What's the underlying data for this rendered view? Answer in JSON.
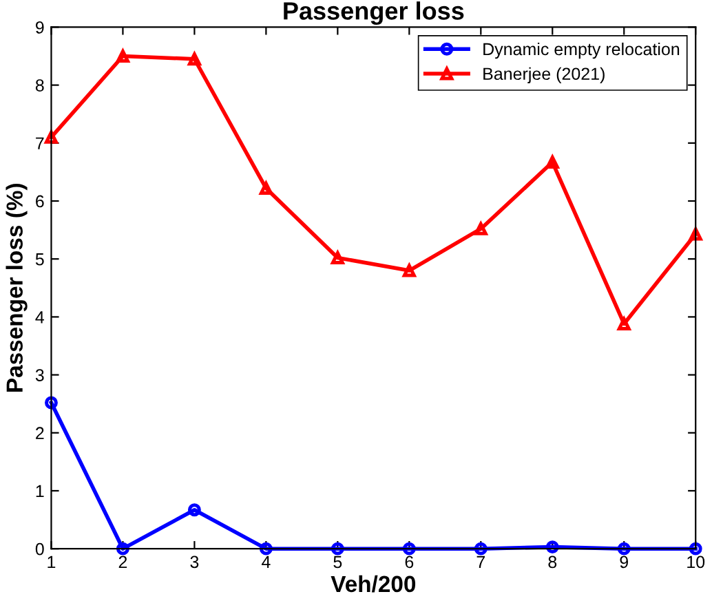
{
  "chart_data": {
    "type": "line",
    "title": "Passenger loss",
    "xlabel": "Veh/200",
    "ylabel": "Passenger loss (%)",
    "x": [
      1,
      2,
      3,
      4,
      5,
      6,
      7,
      8,
      9,
      10
    ],
    "series": [
      {
        "name": "Dynamic empty relocation",
        "color": "#0000ff",
        "marker": "circle",
        "values": [
          2.52,
          0,
          0.67,
          0,
          0,
          0,
          0,
          0.03,
          0,
          0
        ]
      },
      {
        "name": "Banerjee (2021)",
        "color": "#ff0000",
        "marker": "triangle",
        "values": [
          7.1,
          8.5,
          8.45,
          6.22,
          5.02,
          4.8,
          5.52,
          6.67,
          3.88,
          5.43
        ]
      }
    ],
    "xlim": [
      1,
      10
    ],
    "xticks": [
      1,
      2,
      3,
      4,
      5,
      6,
      7,
      8,
      9,
      10
    ],
    "ylim": [
      0,
      9
    ],
    "yticks": [
      0,
      1,
      2,
      3,
      4,
      5,
      6,
      7,
      8,
      9
    ],
    "grid": false,
    "legend": "top right",
    "line_style": "solid"
  }
}
